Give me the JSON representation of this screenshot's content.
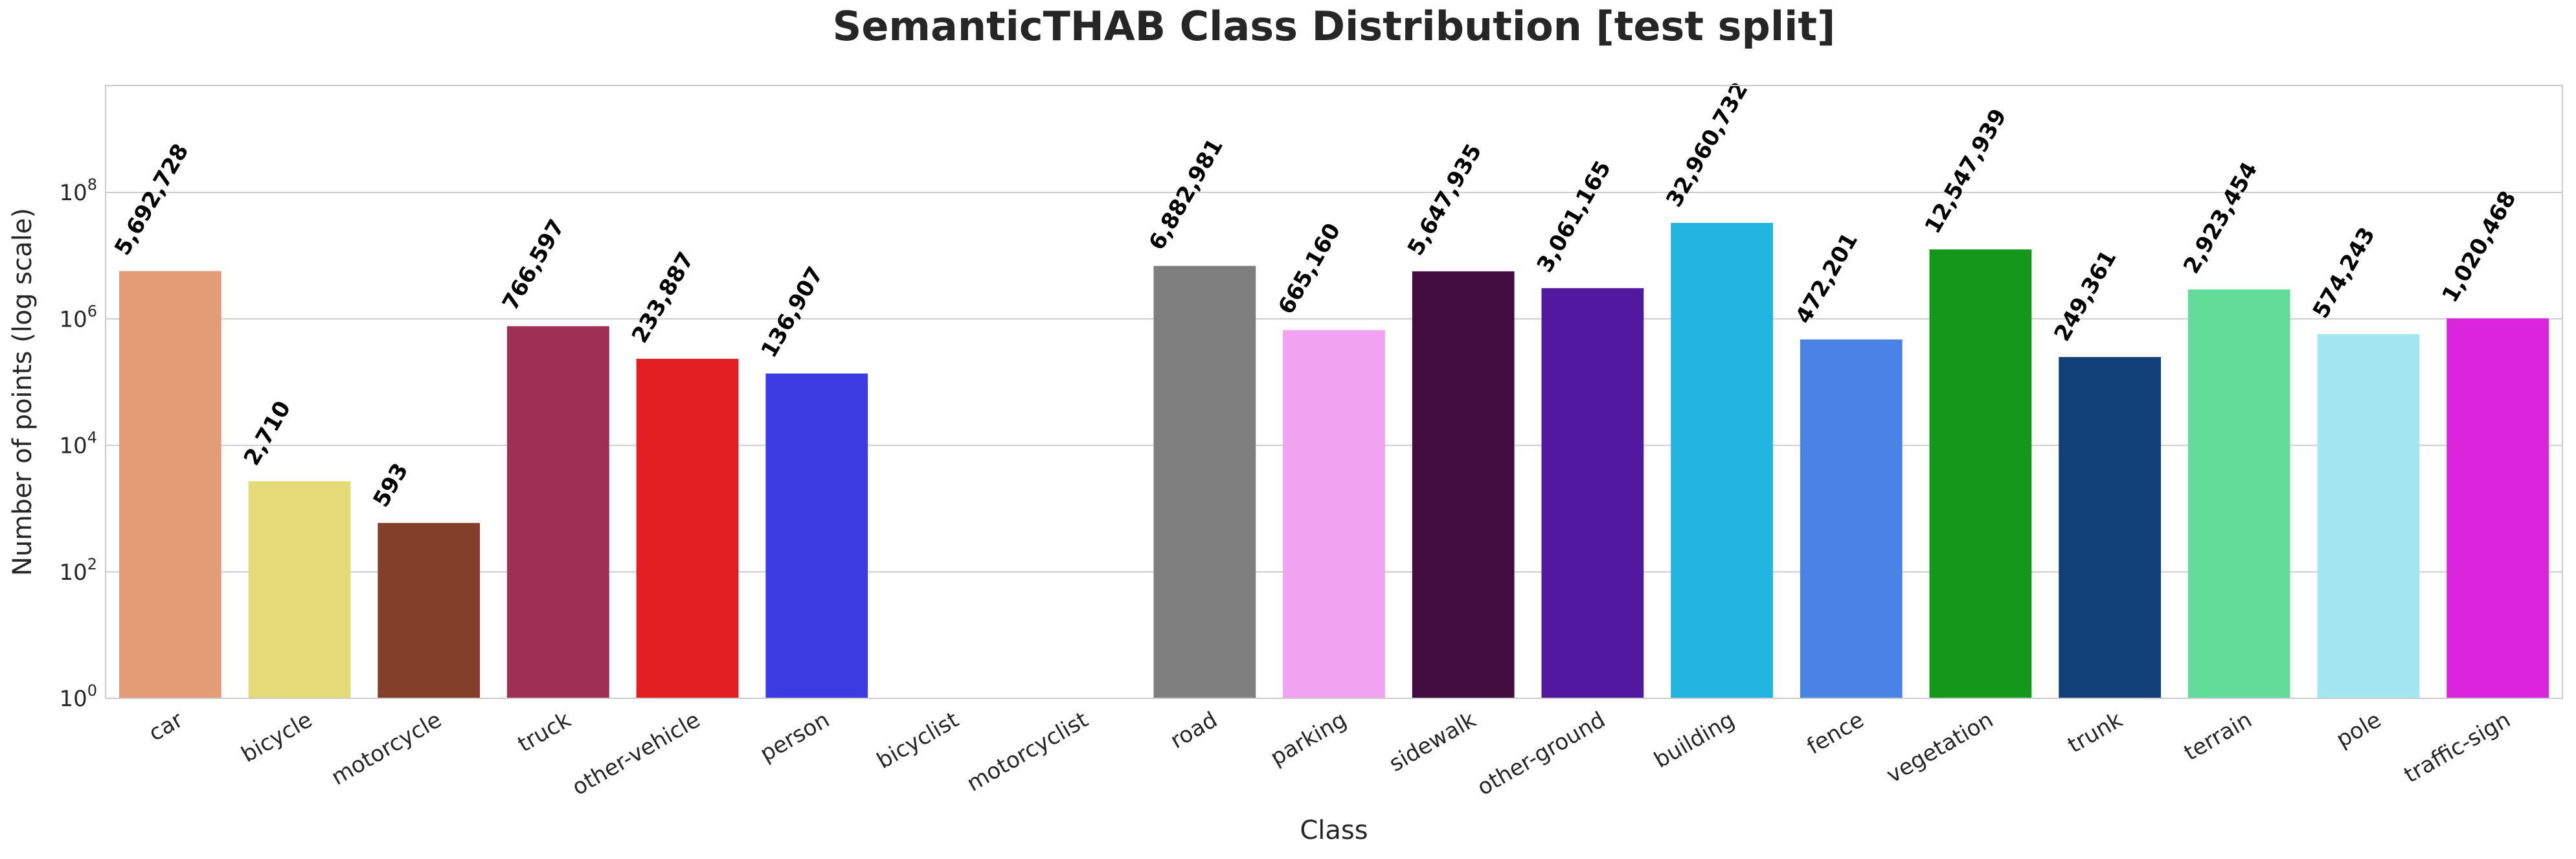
{
  "chart_data": {
    "type": "bar",
    "title": "SemanticTHAB Class Distribution [test split]",
    "xlabel": "Class",
    "ylabel": "Number of points (log scale)",
    "yscale": "log",
    "ylim": [
      1,
      2500000000
    ],
    "yticks": [
      1,
      100,
      10000,
      1000000,
      100000000
    ],
    "ytick_exponents": [
      "0",
      "2",
      "4",
      "6",
      "8"
    ],
    "ytick_base": "10",
    "grid": true,
    "categories": [
      "car",
      "bicycle",
      "motorcycle",
      "truck",
      "other-vehicle",
      "person",
      "bicyclist",
      "motorcyclist",
      "road",
      "parking",
      "sidewalk",
      "other-ground",
      "building",
      "fence",
      "vegetation",
      "trunk",
      "terrain",
      "pole",
      "traffic-sign"
    ],
    "values": [
      5692728,
      2710,
      593,
      766597,
      233887,
      136907,
      0,
      0,
      6882981,
      665160,
      5647935,
      3061165,
      32960732,
      472201,
      12547939,
      249361,
      2923454,
      574243,
      1020468
    ],
    "value_labels": [
      "5,692,728",
      "2,710",
      "593",
      "766,597",
      "233,887",
      "136,907",
      "",
      "",
      "6,882,981",
      "665,160",
      "5,647,935",
      "3,061,165",
      "32,960,732",
      "472,201",
      "12,547,939",
      "249,361",
      "2,923,454",
      "574,243",
      "1,020,468"
    ],
    "colors": [
      "#e49c77",
      "#e4da77",
      "#843f2b",
      "#a02f56",
      "#e11e22",
      "#3b3be2",
      "#ffffff",
      "#ffffff",
      "#7e7e7e",
      "#f1a3f1",
      "#410c3f",
      "#5218a0",
      "#21b5e0",
      "#4b82e5",
      "#13981b",
      "#113f77",
      "#63dc99",
      "#a2e6f1",
      "#db25dc"
    ]
  }
}
